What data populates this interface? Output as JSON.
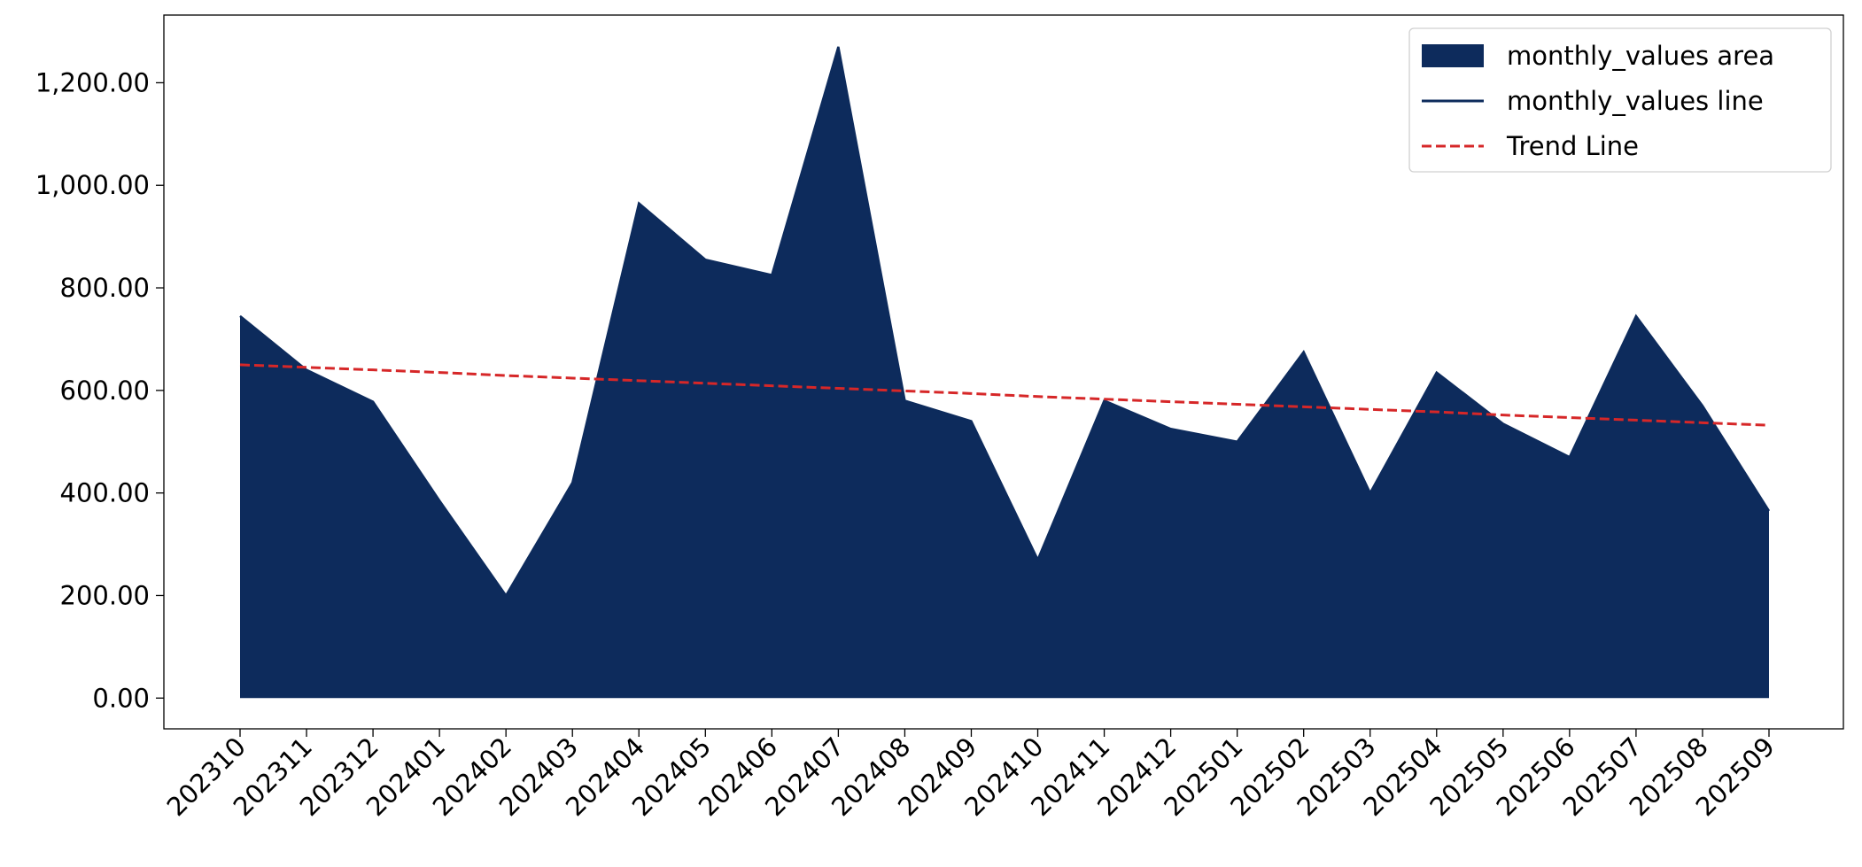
{
  "chart_data": {
    "type": "area",
    "categories": [
      "202310",
      "202311",
      "202312",
      "202401",
      "202402",
      "202403",
      "202404",
      "202405",
      "202406",
      "202407",
      "202408",
      "202409",
      "202410",
      "202411",
      "202412",
      "202501",
      "202502",
      "202503",
      "202504",
      "202505",
      "202506",
      "202507",
      "202508",
      "202509"
    ],
    "series": [
      {
        "name": "monthly_values area",
        "type": "area",
        "color": "#0d2b5c",
        "values": [
          745,
          640,
          578,
          385,
          200,
          420,
          965,
          855,
          825,
          1270,
          580,
          540,
          270,
          580,
          525,
          500,
          675,
          400,
          635,
          535,
          470,
          745,
          570,
          365
        ]
      },
      {
        "name": "monthly_values line",
        "type": "line",
        "color": "#0d2b5c",
        "linestyle": "solid",
        "values": [
          745,
          640,
          578,
          385,
          200,
          420,
          965,
          855,
          825,
          1270,
          580,
          540,
          270,
          580,
          525,
          500,
          675,
          400,
          635,
          535,
          470,
          745,
          570,
          365
        ]
      },
      {
        "name": "Trend Line",
        "type": "line",
        "color": "#d62728",
        "linestyle": "dashed",
        "values": [
          650,
          645,
          640,
          635,
          629,
          624,
          619,
          614,
          609,
          604,
          599,
          594,
          588,
          583,
          578,
          573,
          568,
          563,
          558,
          552,
          547,
          542,
          537,
          532
        ]
      }
    ],
    "ylim": [
      -60,
      1332
    ],
    "yticks": [
      {
        "value": 0,
        "label": "0.00"
      },
      {
        "value": 200,
        "label": "200.00"
      },
      {
        "value": 400,
        "label": "400.00"
      },
      {
        "value": 600,
        "label": "600.00"
      },
      {
        "value": 800,
        "label": "800.00"
      },
      {
        "value": 1000,
        "label": "1,000.00"
      },
      {
        "value": 1200,
        "label": "1,200.00"
      }
    ],
    "grid": false,
    "legend": "upper right"
  }
}
